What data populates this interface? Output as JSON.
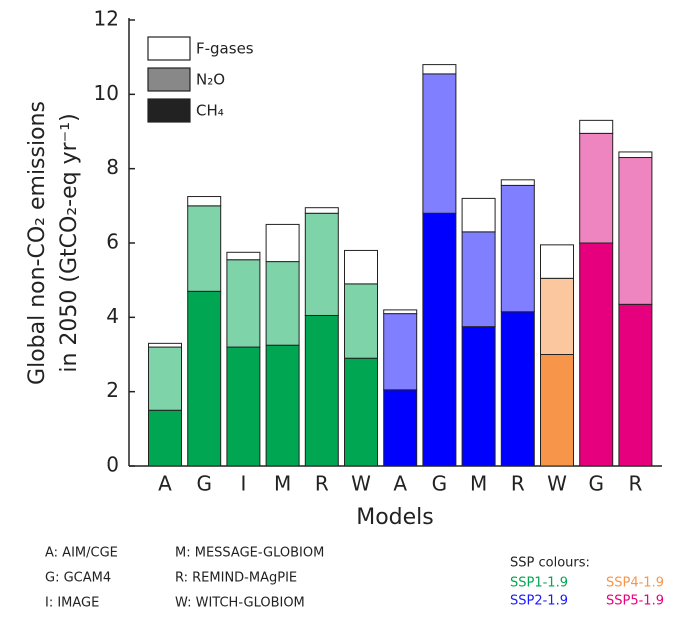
{
  "chart_data": {
    "type": "stacked-bar",
    "categories": [
      "A",
      "G",
      "I",
      "M",
      "R",
      "W",
      "A",
      "G",
      "M",
      "R",
      "W",
      "G",
      "R"
    ],
    "series": [
      {
        "name": "CH₄",
        "color": "#222222",
        "values": [
          1.5,
          4.7,
          3.2,
          3.25,
          4.05,
          2.9,
          2.05,
          6.8,
          3.75,
          4.15,
          3.0,
          6.0,
          4.35
        ],
        "bar_colors": [
          "#00a651",
          "#00a651",
          "#00a651",
          "#00a651",
          "#00a651",
          "#00a651",
          "#0000ff",
          "#0000ff",
          "#0000ff",
          "#0000ff",
          "#f7964a",
          "#e6007e",
          "#e6007e"
        ]
      },
      {
        "name": "N₂O",
        "color": "#888888",
        "values": [
          1.7,
          2.3,
          2.35,
          2.25,
          2.75,
          2.0,
          2.05,
          3.75,
          2.55,
          3.4,
          2.05,
          2.95,
          3.95
        ],
        "bar_colors": [
          "#7fd3a8",
          "#7fd3a8",
          "#7fd3a8",
          "#7fd3a8",
          "#7fd3a8",
          "#7fd3a8",
          "#7f7fff",
          "#7f7fff",
          "#7f7fff",
          "#7f7fff",
          "#fbc79e",
          "#ef85c0",
          "#ef85c0"
        ]
      },
      {
        "name": "F-gases",
        "color": "#ffffff",
        "values": [
          0.1,
          0.25,
          0.2,
          1.0,
          0.15,
          0.9,
          0.1,
          0.25,
          0.9,
          0.15,
          0.9,
          0.35,
          0.15
        ],
        "bar_colors": [
          "#ffffff",
          "#ffffff",
          "#ffffff",
          "#ffffff",
          "#ffffff",
          "#ffffff",
          "#ffffff",
          "#ffffff",
          "#ffffff",
          "#ffffff",
          "#ffffff",
          "#ffffff",
          "#ffffff"
        ]
      }
    ],
    "ylim": [
      0,
      12
    ],
    "yticks": [
      0,
      2,
      4,
      6,
      8,
      10,
      12
    ],
    "ylabel": [
      "Global non-CO₂ emissions",
      "in 2050 (GtCO₂-eq yr⁻¹)"
    ],
    "xlabel": "Models",
    "legend": "upper-left",
    "model_key": [
      "A: AIM/CGE",
      "G: GCAM4",
      "I: IMAGE",
      "M: MESSAGE-GLOBIOM",
      "R: REMIND-MAgPIE",
      "W: WITCH-GLOBIOM"
    ],
    "ssp_legend": {
      "title": "SSP colours:",
      "items": [
        {
          "name": "SSP1-1.9",
          "color": "#00a651"
        },
        {
          "name": "SSP4-1.9",
          "color": "#f7964a"
        },
        {
          "name": "SSP2-1.9",
          "color": "#1a1aff"
        },
        {
          "name": "SSP5-1.9",
          "color": "#e6007e"
        }
      ]
    }
  }
}
